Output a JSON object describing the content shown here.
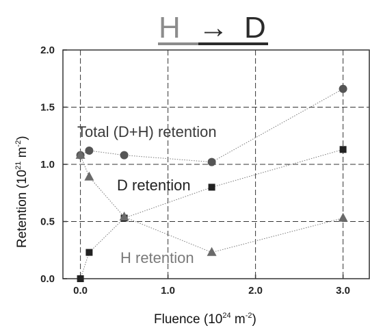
{
  "header": {
    "left": "H",
    "arrow": "→",
    "right": "D"
  },
  "chart_data": {
    "type": "scatter",
    "xlabel": {
      "main": "Fluence (10",
      "sup": "24",
      "tail": " m",
      "sup2": "-2",
      "close": ")"
    },
    "ylabel": {
      "main": "Retention (10",
      "sup": "21",
      "tail": " m",
      "sup2": "-2",
      "close": ")"
    },
    "xlim": [
      -0.2,
      3.3
    ],
    "ylim": [
      0.0,
      2.0
    ],
    "x_ticks": [
      {
        "v": 0.0,
        "label": "0.0"
      },
      {
        "v": 1.0,
        "label": "1.0"
      },
      {
        "v": 2.0,
        "label": "2.0"
      },
      {
        "v": 3.0,
        "label": "3.0"
      }
    ],
    "y_ticks": [
      {
        "v": 0.0,
        "label": "0.0"
      },
      {
        "v": 0.5,
        "label": "0.5"
      },
      {
        "v": 1.0,
        "label": "1.0"
      },
      {
        "v": 1.5,
        "label": "1.5"
      },
      {
        "v": 2.0,
        "label": "2.0"
      }
    ],
    "grid": true,
    "series": [
      {
        "name": "Total (D+H) retention",
        "marker": "circle",
        "color": "#555555",
        "points": [
          [
            0.0,
            1.08
          ],
          [
            0.1,
            1.12
          ],
          [
            0.5,
            1.08
          ],
          [
            1.5,
            1.02
          ],
          [
            3.0,
            1.66
          ]
        ]
      },
      {
        "name": "D retention",
        "marker": "square",
        "color": "#222222",
        "points": [
          [
            0.0,
            0.0
          ],
          [
            0.1,
            0.23
          ],
          [
            0.5,
            0.53
          ],
          [
            1.5,
            0.8
          ],
          [
            3.0,
            1.13
          ]
        ]
      },
      {
        "name": "H retention",
        "marker": "triangle",
        "color": "#6a6a6a",
        "points": [
          [
            0.0,
            1.08
          ],
          [
            0.1,
            0.89
          ],
          [
            0.5,
            0.54
          ],
          [
            1.5,
            0.23
          ],
          [
            3.0,
            0.53
          ]
        ]
      }
    ]
  },
  "colors": {
    "header_left": "#8c8c8c",
    "header_right": "#2b2b2b",
    "total_label": "#3a3a3a",
    "d_label": "#222222",
    "h_label": "#7a7a7a"
  }
}
